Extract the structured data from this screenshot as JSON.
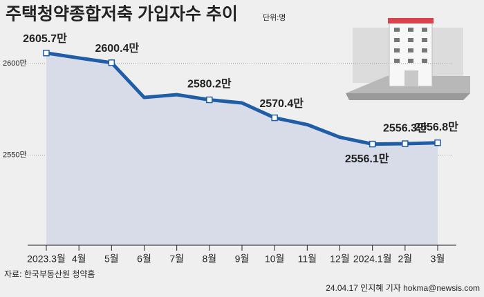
{
  "chart_data": {
    "type": "line",
    "title": "주택청약종합저축 가입자수 추이",
    "unit_note": "단위:명",
    "source": "자료: 한국부동산원 청약홈",
    "credit": "24.04.17 인지혜 기자 hokma@newsis.com",
    "categories": [
      "2023.3월",
      "4월",
      "5월",
      "6월",
      "7월",
      "8월",
      "9월",
      "10월",
      "11월",
      "12월",
      "2024.1월",
      "2월",
      "3월"
    ],
    "values": [
      2605.7,
      2603,
      2600.4,
      2581.5,
      2583,
      2580.2,
      2578.5,
      2570.4,
      2566.7,
      2559.8,
      2556.1,
      2556.3,
      2556.8
    ],
    "value_labels": [
      "2605.7만",
      null,
      "2600.4만",
      null,
      null,
      "2580.2만",
      null,
      "2570.4만",
      null,
      null,
      "2556.1만",
      "2556.3만",
      "2556.8만"
    ],
    "color": "#1f5da6",
    "area_color": "#d8dbe8",
    "ylim": [
      2501,
      2612
    ],
    "yticks": [
      {
        "value": 2550,
        "label": "2550만"
      },
      {
        "value": 2600,
        "label": "2600만"
      }
    ],
    "grid": true
  }
}
